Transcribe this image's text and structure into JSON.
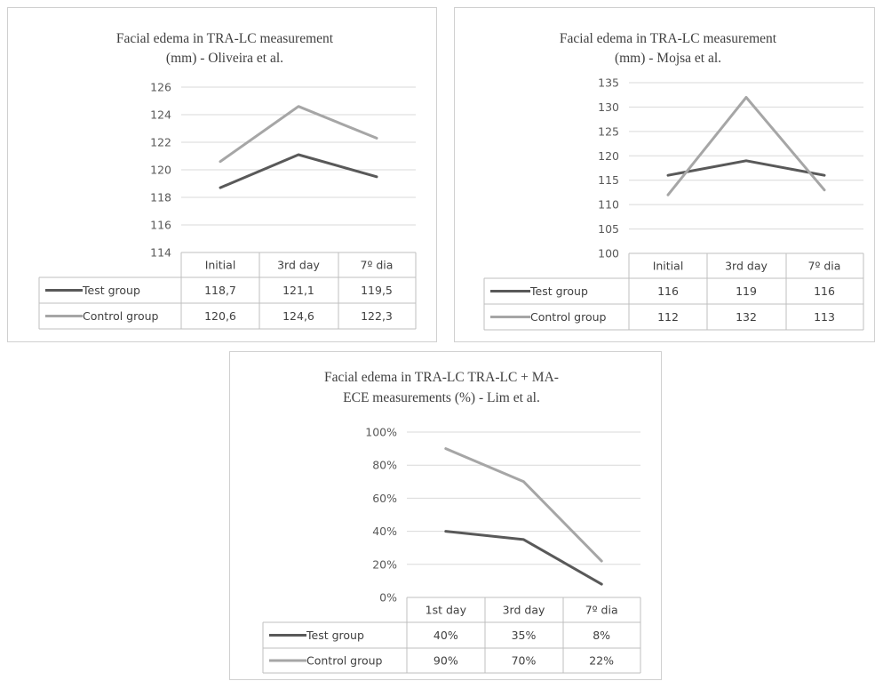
{
  "chart_data": [
    {
      "type": "line",
      "title": [
        "Facial edema in TRA-LC measurement",
        "(mm) - Oliveira et al."
      ],
      "categories": [
        "Initial",
        "3rd day",
        "7º dia"
      ],
      "ylim": [
        114,
        126
      ],
      "yticks": [
        114,
        116,
        118,
        120,
        122,
        124,
        126
      ],
      "ytick_labels": [
        "114",
        "116",
        "118",
        "120",
        "122",
        "124",
        "126"
      ],
      "grid": true,
      "series": [
        {
          "name": "Test group",
          "values": [
            118.7,
            121.1,
            119.5
          ],
          "labels": [
            "118,7",
            "121,1",
            "119,5"
          ],
          "color": "#595959"
        },
        {
          "name": "Control group",
          "values": [
            120.6,
            124.6,
            122.3
          ],
          "labels": [
            "120,6",
            "124,6",
            "122,3"
          ],
          "color": "#a6a6a6"
        }
      ]
    },
    {
      "type": "line",
      "title": [
        "Facial edema in TRA-LC measurement",
        "(mm) - Mojsa et al."
      ],
      "categories": [
        "Initial",
        "3rd day",
        "7º dia"
      ],
      "ylim": [
        100,
        135
      ],
      "yticks": [
        100,
        105,
        110,
        115,
        120,
        125,
        130,
        135
      ],
      "ytick_labels": [
        "100",
        "105",
        "110",
        "115",
        "120",
        "125",
        "130",
        "135"
      ],
      "grid": true,
      "series": [
        {
          "name": "Test group",
          "values": [
            116,
            119,
            116
          ],
          "labels": [
            "116",
            "119",
            "116"
          ],
          "color": "#595959"
        },
        {
          "name": "Control group",
          "values": [
            112,
            132,
            113
          ],
          "labels": [
            "112",
            "132",
            "113"
          ],
          "color": "#a6a6a6"
        }
      ]
    },
    {
      "type": "line",
      "title": [
        "Facial edema in TRA-LC TRA-LC + MA-",
        "ECE measurements (%) - Lim et al."
      ],
      "categories": [
        "1st day",
        "3rd day",
        "7º dia"
      ],
      "ylim": [
        0,
        100
      ],
      "yticks": [
        0,
        20,
        40,
        60,
        80,
        100
      ],
      "ytick_labels": [
        "0%",
        "20%",
        "40%",
        "60%",
        "80%",
        "100%"
      ],
      "grid": true,
      "series": [
        {
          "name": "Test group",
          "values": [
            40,
            35,
            8
          ],
          "labels": [
            "40%",
            "35%",
            "8%"
          ],
          "color": "#595959"
        },
        {
          "name": "Control group",
          "values": [
            90,
            70,
            22
          ],
          "labels": [
            "90%",
            "70%",
            "22%"
          ],
          "color": "#a6a6a6"
        }
      ]
    }
  ]
}
